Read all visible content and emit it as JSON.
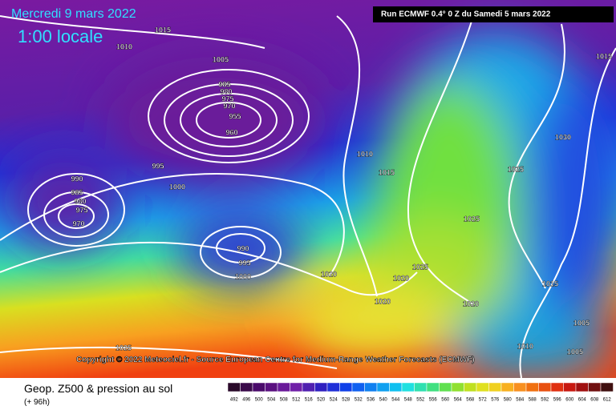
{
  "header": {
    "date": "Mercredi 9 mars 2022",
    "time": "1:00 locale",
    "run": "Run ECMWF 0.4° 0 Z du Samedi 5 mars 2022"
  },
  "copyright": "Copyright © 2022 Meteociel.fr - Source European Centre for Medium-Range Weather Forecasts (ECMWF)",
  "footer": {
    "title": "Geop. Z500 & pression au sol",
    "lead": "(+ 96h)"
  },
  "colorbar": {
    "labels": [
      492,
      496,
      500,
      504,
      508,
      512,
      516,
      520,
      524,
      528,
      532,
      536,
      540,
      544,
      548,
      552,
      556,
      560,
      564,
      568,
      572,
      576,
      580,
      584,
      588,
      592,
      596,
      600,
      604,
      608,
      612
    ]
  },
  "isobar_labels": [
    "1015",
    "1010",
    "1005",
    "985",
    "980",
    "975",
    "970",
    "955",
    "960",
    "995",
    "1000",
    "990",
    "985",
    "980",
    "975",
    "970",
    "990",
    "995",
    "1000",
    "1010",
    "1015",
    "1030",
    "1025",
    "1025",
    "1025",
    "1020",
    "1020",
    "1020",
    "1020",
    "1015",
    "1015",
    "1010",
    "1005",
    "1005",
    "1025"
  ]
}
